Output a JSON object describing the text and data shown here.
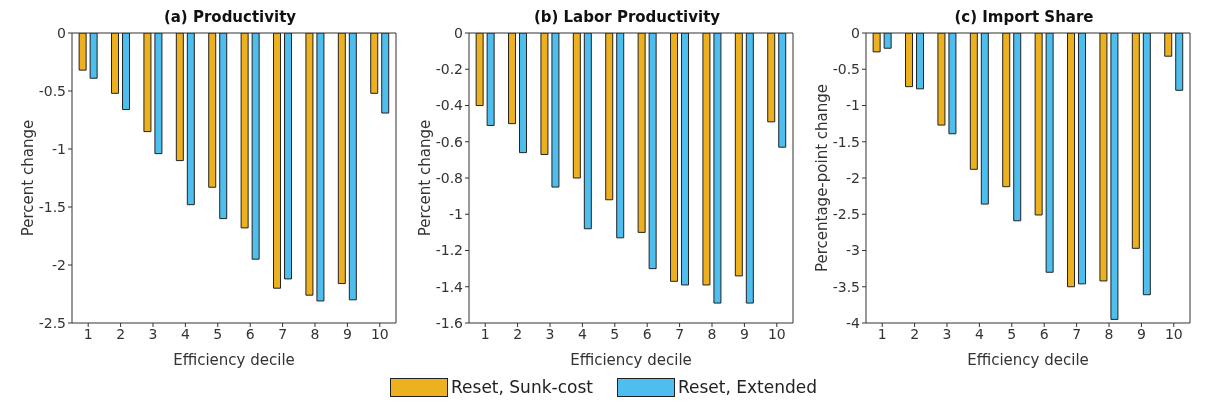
{
  "chart_data": [
    {
      "type": "bar",
      "title": "(a) Productivity",
      "xlabel": "Efficiency decile",
      "ylabel": "Percent change",
      "categories": [
        "1",
        "2",
        "3",
        "4",
        "5",
        "6",
        "7",
        "8",
        "9",
        "10"
      ],
      "ylim": [
        -2.5,
        0
      ],
      "yticks": [
        -2.5,
        -2,
        -1.5,
        -1,
        -0.5,
        0
      ],
      "series": [
        {
          "color": "#edb120",
          "values": [
            -0.32,
            -0.52,
            -0.85,
            -1.1,
            -1.33,
            -1.68,
            -2.2,
            -2.26,
            -2.16,
            -0.52
          ]
        },
        {
          "color": "#4dbeee",
          "values": [
            -0.39,
            -0.66,
            -1.04,
            -1.48,
            -1.6,
            -1.95,
            -2.12,
            -2.31,
            -2.3,
            -0.69
          ]
        }
      ]
    },
    {
      "type": "bar",
      "title": "(b) Labor Productivity",
      "xlabel": "Efficiency decile",
      "ylabel": "Percent change",
      "categories": [
        "1",
        "2",
        "3",
        "4",
        "5",
        "6",
        "7",
        "8",
        "9",
        "10"
      ],
      "ylim": [
        -1.6,
        0
      ],
      "yticks": [
        -1.6,
        -1.4,
        -1.2,
        -1,
        -0.8,
        -0.6,
        -0.4,
        -0.2,
        0
      ],
      "legend": "bottom",
      "series": [
        {
          "name": "Reset, Sunk-cost",
          "color": "#edb120",
          "values": [
            -0.4,
            -0.5,
            -0.67,
            -0.8,
            -0.92,
            -1.1,
            -1.37,
            -1.39,
            -1.34,
            -0.49
          ]
        },
        {
          "name": "Reset, Extended",
          "color": "#4dbeee",
          "values": [
            -0.51,
            -0.66,
            -0.85,
            -1.08,
            -1.13,
            -1.3,
            -1.39,
            -1.49,
            -1.49,
            -0.63
          ]
        }
      ]
    },
    {
      "type": "bar",
      "title": "(c) Import Share",
      "xlabel": "Efficiency decile",
      "ylabel": "Percentage-point change",
      "categories": [
        "1",
        "2",
        "3",
        "4",
        "5",
        "6",
        "7",
        "8",
        "9",
        "10"
      ],
      "ylim": [
        -4,
        0
      ],
      "yticks": [
        -4,
        -3.5,
        -3,
        -2.5,
        -2,
        -1.5,
        -1,
        -0.5,
        0
      ],
      "series": [
        {
          "color": "#edb120",
          "values": [
            -0.26,
            -0.74,
            -1.27,
            -1.88,
            -2.12,
            -2.51,
            -3.5,
            -3.42,
            -2.97,
            -0.32
          ]
        },
        {
          "color": "#4dbeee",
          "values": [
            -0.21,
            -0.77,
            -1.39,
            -2.36,
            -2.59,
            -3.3,
            -3.46,
            -3.95,
            -3.61,
            -0.79
          ]
        }
      ]
    }
  ]
}
